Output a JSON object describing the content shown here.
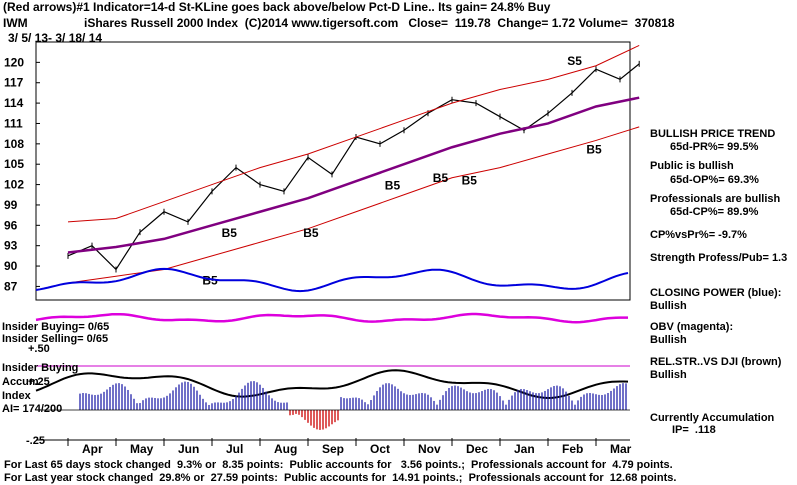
{
  "header": {
    "line1": "(Red arrows)#1 Indicator=14-d St-KLine goes back above/below Pct-D Line.. Its gain= 24.8% Buy",
    "symbol": "IWM",
    "line2": "iShares Russell 2000 Index  (C)2014 www.tigersoft.com   Close=  119.78  Change= 1.72 Volume=  370818",
    "date_range": "3/ 5/ 13- 3/ 18/ 14"
  },
  "side_panel": {
    "trend_title": "BULLISH PRICE TREND",
    "trend_value": "65d-PR%= 99.5%",
    "public_title": "Public is bullish",
    "public_value": "65d-OP%= 69.3%",
    "pros_title": "Professionals are bullish",
    "pros_value": "65d-CP%= 89.9%",
    "cpvspr": "CP%vsPr%= -9.7%",
    "strength": "Strength Profess/Pub= 1.3",
    "closing_power_title": "CLOSING POWER (blue):",
    "closing_power_value": "Bullish",
    "obv_title": "OBV (magenta):",
    "obv_value": "Bullish",
    "relstr_title": "REL.STR..VS DJI (brown)",
    "relstr_value": "Bullish",
    "accum_title": "Currently Accumulation",
    "accum_value": "IP=  .118"
  },
  "lower_labels": {
    "insider_buying_ratio": "Insider Buying= 0/65",
    "insider_selling_ratio": "Insider Selling= 0/65",
    "plus50": "+.50",
    "insider_buying": "Insider Buying",
    "accum": "Accum",
    "plus25": "+.25",
    "index": "Index",
    "ai": "AI= 174/200",
    "minus25": "-.25"
  },
  "footer": {
    "line1": "For Last 65 days stock changed  9.3% or  8.35 points:  Public accounts for   3.56 points.;  Professionals account for  4.79 points.",
    "line2": "For Last year stock changed  29.8% or  27.59 points:  Public accounts for  14.91 points.;  Professionals account for  12.68 points."
  },
  "chart_data": {
    "type": "line",
    "title": "iShares Russell 2000 Index (IWM)",
    "y_ticks": [
      "120",
      "117",
      "114",
      "111",
      "108",
      "105",
      "102",
      "99",
      "96",
      "93",
      "90",
      "87"
    ],
    "y_tick_values": [
      120,
      117,
      114,
      111,
      108,
      105,
      102,
      99,
      96,
      93,
      90,
      87
    ],
    "ylim": [
      85,
      123
    ],
    "x_ticks": [
      "Apr",
      "May",
      "Jun",
      "Jul",
      "Aug",
      "Sep",
      "Oct",
      "Nov",
      "Dec",
      "Jan",
      "Feb",
      "Mar"
    ],
    "buy_sell_labels": [
      {
        "text": "S5",
        "x_month": 10.4,
        "y": 119.6
      },
      {
        "text": "B5",
        "x_month": 6.6,
        "y": 101.3
      },
      {
        "text": "B5",
        "x_month": 7.6,
        "y": 102.4
      },
      {
        "text": "B5",
        "x_month": 8.2,
        "y": 102.0
      },
      {
        "text": "B5",
        "x_month": 10.8,
        "y": 106.6
      },
      {
        "text": "B5",
        "x_month": 3.2,
        "y": 94.3
      },
      {
        "text": "B5",
        "x_month": 4.9,
        "y": 94.3
      },
      {
        "text": "B5",
        "x_month": 2.8,
        "y": 87.3
      }
    ],
    "series": [
      {
        "name": "Price close",
        "color": "#000000",
        "x": [
          0,
          0.5,
          1,
          1.5,
          2,
          2.5,
          3,
          3.5,
          4,
          4.5,
          5,
          5.5,
          6,
          6.5,
          7,
          7.5,
          8,
          8.5,
          9,
          9.5,
          10,
          10.5,
          11,
          11.5,
          11.9
        ],
        "values": [
          91.5,
          93.0,
          89.5,
          95.0,
          98.0,
          96.5,
          101.0,
          104.5,
          102.0,
          101.0,
          106.0,
          103.5,
          109.0,
          108.0,
          110.0,
          112.5,
          114.5,
          114.0,
          112.0,
          110.0,
          112.5,
          115.5,
          119.0,
          117.5,
          119.78
        ]
      },
      {
        "name": "65-day moving average",
        "color": "#800080",
        "x": [
          0,
          1,
          2,
          3,
          4,
          5,
          6,
          7,
          8,
          9,
          10,
          11,
          11.9
        ],
        "values": [
          92.0,
          92.8,
          94.0,
          96.0,
          98.0,
          100.0,
          102.5,
          105.0,
          107.5,
          109.5,
          111.0,
          113.5,
          114.8
        ]
      },
      {
        "name": "Upper band",
        "color": "#cc0000",
        "x": [
          0,
          1,
          2,
          3,
          4,
          5,
          6,
          7,
          8,
          9,
          10,
          11,
          11.9
        ],
        "values": [
          96.5,
          97.0,
          99.5,
          102.0,
          104.5,
          106.5,
          109.0,
          111.5,
          114.0,
          116.0,
          117.5,
          119.5,
          122.5
        ]
      },
      {
        "name": "Lower band",
        "color": "#cc0000",
        "x": [
          0,
          1,
          2,
          3,
          4,
          5,
          6,
          7,
          8,
          9,
          10,
          11,
          11.9
        ],
        "values": [
          87.5,
          88.5,
          89.5,
          91.5,
          93.5,
          95.5,
          98.0,
          100.5,
          103.0,
          104.5,
          106.5,
          108.5,
          110.5
        ]
      }
    ]
  }
}
